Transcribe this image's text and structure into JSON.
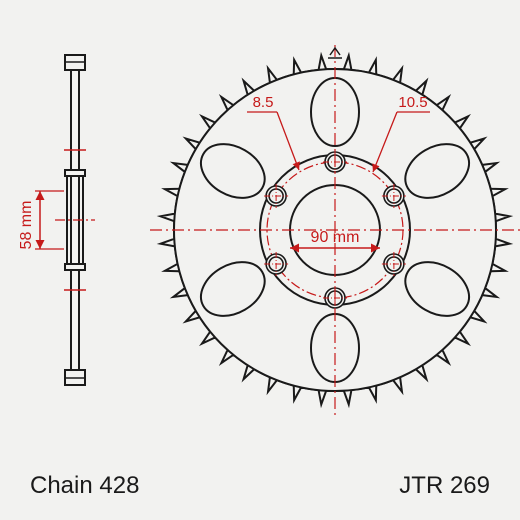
{
  "type": "diagram",
  "part_number": "JTR 269",
  "chain_label": "Chain 428",
  "side_view": {
    "height_label": "58 mm",
    "axis_color": "#c61a1a",
    "stroke_color": "#1a1a1a"
  },
  "front_view": {
    "tooth_count": 40,
    "inner_diameter_label": "90 mm",
    "bolt_hole_diameter_label": "8.5",
    "counterbore_diameter_label": "10.5",
    "bolt_hole_count": 6,
    "cutout_count": 6,
    "dim_color": "#c61a1a",
    "stroke_color": "#1a1a1a",
    "outer_radius": 175,
    "tooth_depth": 14,
    "pitch_radius": 68,
    "hub_radius": 45,
    "bolt_hole_radius": 7,
    "counterbore_radius": 10
  },
  "colors": {
    "background": "#f2f2f0",
    "stroke": "#1a1a1a",
    "dimension": "#c61a1a",
    "text": "#1a1a1a"
  },
  "font": {
    "label_size": 24,
    "dim_size": 16
  }
}
